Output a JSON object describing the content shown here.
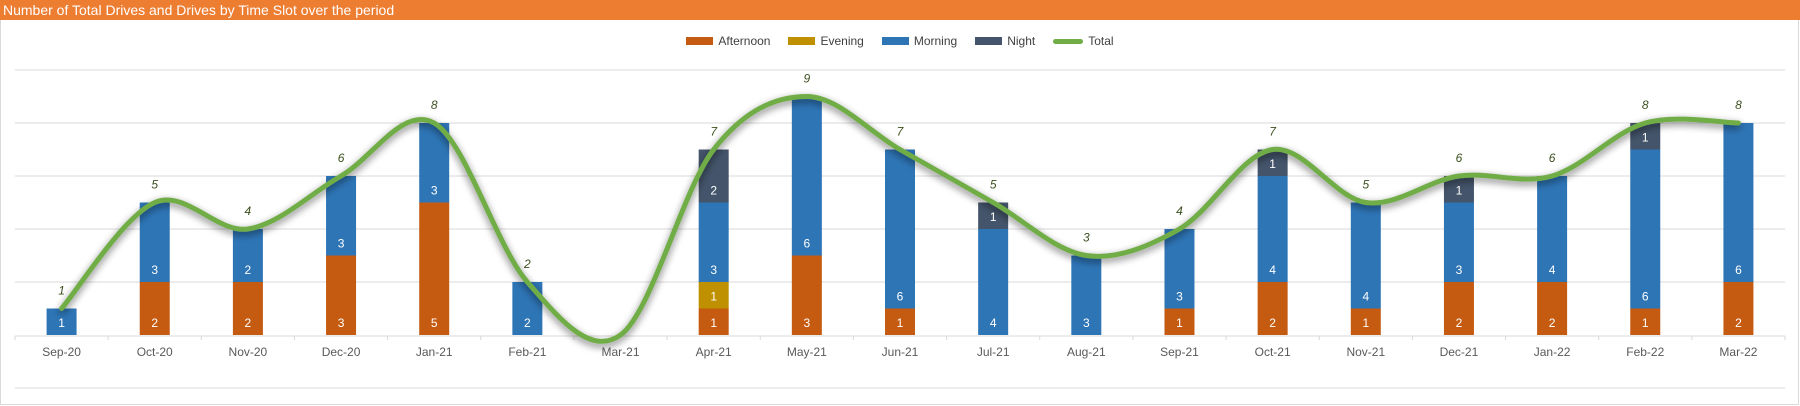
{
  "chart_data": {
    "type": "bar",
    "stacked": true,
    "title": "Number of Total Drives and Drives by Time Slot over the period",
    "xlabel": "",
    "ylabel": "",
    "ylim": [
      0,
      10
    ],
    "grid": true,
    "legend_position": "top-center",
    "categories": [
      "Sep-20",
      "Oct-20",
      "Nov-20",
      "Dec-20",
      "Jan-21",
      "Feb-21",
      "Mar-21",
      "Apr-21",
      "May-21",
      "Jun-21",
      "Jul-21",
      "Aug-21",
      "Sep-21",
      "Oct-21",
      "Nov-21",
      "Dec-21",
      "Jan-22",
      "Feb-22",
      "Mar-22"
    ],
    "series": [
      {
        "name": "Afternoon",
        "kind": "bar",
        "color": "#C55A11",
        "values": [
          0,
          2,
          2,
          3,
          5,
          0,
          0,
          1,
          3,
          1,
          0,
          0,
          1,
          2,
          1,
          2,
          2,
          1,
          2
        ]
      },
      {
        "name": "Evening",
        "kind": "bar",
        "color": "#BF9000",
        "values": [
          0,
          0,
          0,
          0,
          0,
          0,
          0,
          1,
          0,
          0,
          0,
          0,
          0,
          0,
          0,
          0,
          0,
          0,
          0
        ]
      },
      {
        "name": "Morning",
        "kind": "bar",
        "color": "#2E75B6",
        "values": [
          1,
          3,
          2,
          3,
          3,
          2,
          0,
          3,
          6,
          6,
          4,
          3,
          3,
          4,
          4,
          3,
          4,
          6,
          6
        ]
      },
      {
        "name": "Night",
        "kind": "bar",
        "color": "#44546A",
        "values": [
          0,
          0,
          0,
          0,
          0,
          0,
          0,
          2,
          0,
          0,
          1,
          0,
          0,
          1,
          0,
          1,
          0,
          1,
          0
        ]
      },
      {
        "name": "Total",
        "kind": "line",
        "color": "#70AD47",
        "values": [
          1,
          5,
          4,
          6,
          8,
          2,
          0,
          7,
          9,
          7,
          5,
          3,
          4,
          7,
          5,
          6,
          6,
          8,
          8
        ],
        "labels": [
          "1",
          "5",
          "4",
          "6",
          "8",
          "2",
          "",
          "7",
          "9",
          "7",
          "5",
          "3",
          "4",
          "7",
          "5",
          "6",
          "6",
          "8",
          "8"
        ]
      }
    ]
  }
}
